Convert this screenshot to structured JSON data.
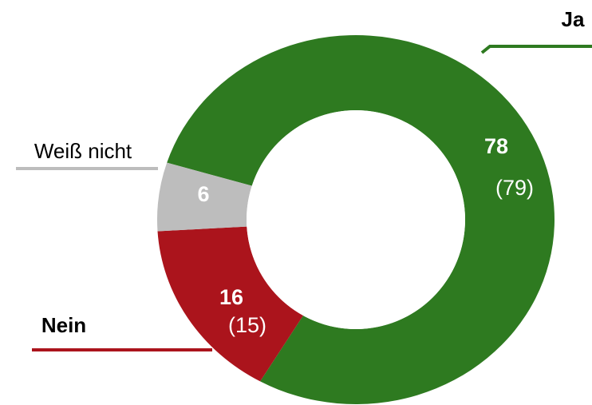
{
  "chart_data": {
    "type": "donut",
    "categories": [
      "Ja",
      "Nein",
      "Weiß nicht"
    ],
    "values": [
      78,
      16,
      6
    ],
    "previous_values": [
      79,
      15,
      null
    ],
    "previous_value_labels": [
      "(79)",
      "(15)",
      null
    ],
    "colors": [
      "#2e7a20",
      "#ab141c",
      "#bdbdbd"
    ]
  }
}
